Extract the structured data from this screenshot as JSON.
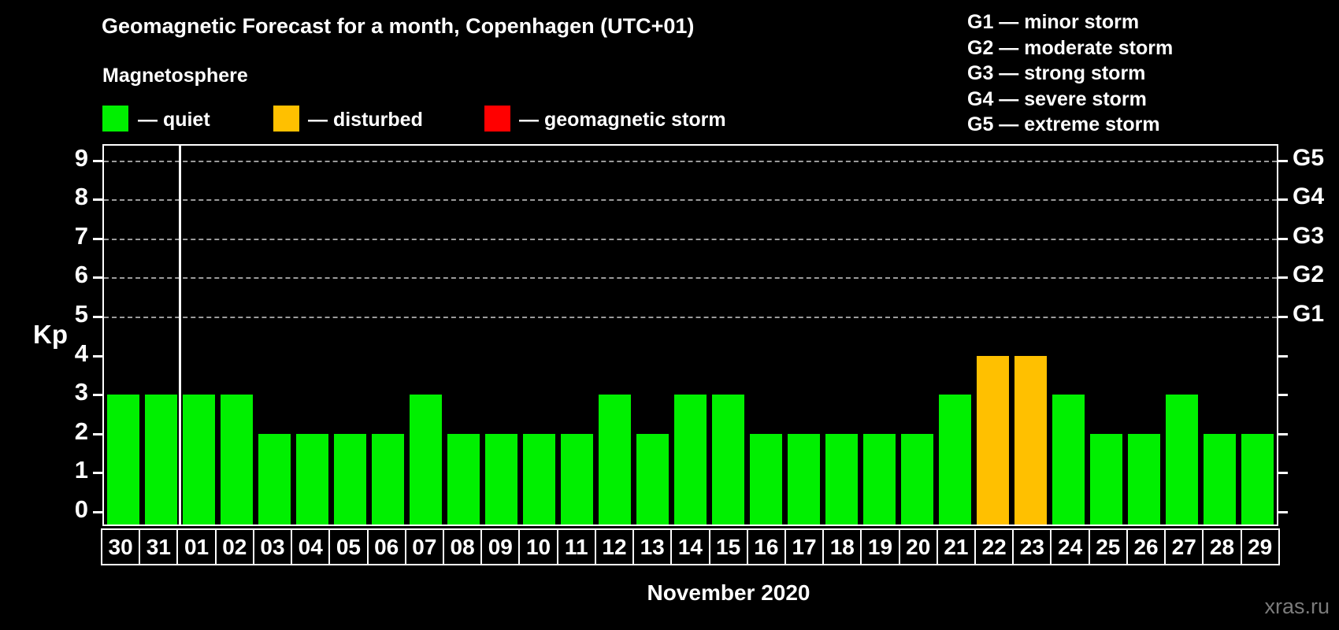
{
  "header": {
    "title": "Geomagnetic Forecast for a month, Copenhagen (UTC+01)",
    "subtitle": "Magnetosphere"
  },
  "legend": {
    "items": [
      {
        "name": "quiet",
        "color": "#00f000",
        "label": "— quiet"
      },
      {
        "name": "disturbed",
        "color": "#ffc000",
        "label": "— disturbed"
      },
      {
        "name": "geomagnetic-storm",
        "color": "#ff0000",
        "label": "— geomagnetic storm"
      }
    ]
  },
  "g_legend": {
    "items": [
      "G1 — minor storm",
      "G2 — moderate storm",
      "G3 — strong storm",
      "G4 — severe storm",
      "G5 — extreme storm"
    ]
  },
  "axes": {
    "kp_label": "Kp",
    "y_ticks": [
      0,
      1,
      2,
      3,
      4,
      5,
      6,
      7,
      8,
      9
    ],
    "xlabel": "November 2020"
  },
  "watermark": "xras.ru",
  "chart_data": {
    "type": "bar",
    "title": "Geomagnetic Forecast for a month, Copenhagen (UTC+01)",
    "xlabel": "November 2020",
    "ylabel": "Kp",
    "ylim": [
      0,
      9
    ],
    "grid": "dashed horizontal at Kp 5-9",
    "grid_levels": [
      5,
      6,
      7,
      8,
      9
    ],
    "right_axis_labels": {
      "5": "G1",
      "6": "G2",
      "7": "G3",
      "8": "G4",
      "9": "G5"
    },
    "categories": [
      "30",
      "31",
      "01",
      "02",
      "03",
      "04",
      "05",
      "06",
      "07",
      "08",
      "09",
      "10",
      "11",
      "12",
      "13",
      "14",
      "15",
      "16",
      "17",
      "18",
      "19",
      "20",
      "21",
      "22",
      "23",
      "24",
      "25",
      "26",
      "27",
      "28",
      "29"
    ],
    "values": [
      3,
      3,
      3,
      3,
      2,
      2,
      2,
      2,
      3,
      2,
      2,
      2,
      2,
      3,
      2,
      3,
      3,
      2,
      2,
      2,
      2,
      2,
      3,
      4,
      4,
      3,
      2,
      2,
      3,
      2,
      2
    ],
    "separator_after_category": "31",
    "color_rules": {
      "quiet": {
        "max_kp": 3,
        "color": "#00f000"
      },
      "disturbed": {
        "max_kp": 4,
        "color": "#ffc000"
      },
      "storm": {
        "max_kp": 9,
        "color": "#ff0000"
      }
    }
  }
}
